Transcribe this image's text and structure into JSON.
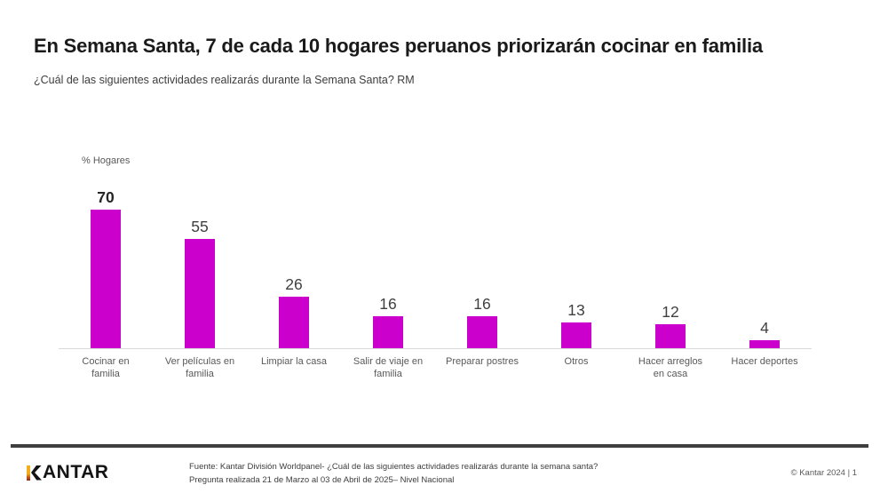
{
  "slide": {
    "title": "En Semana Santa, 7 de cada 10 hogares peruanos priorizarán cocinar en familia",
    "subtitle": "¿Cuál de las siguientes actividades realizarás durante la Semana Santa? RM"
  },
  "chart_data": {
    "type": "bar",
    "title": "",
    "ylabel": "% Hogares",
    "xlabel": "",
    "categories": [
      "Cocinar en familia",
      "Ver películas en familia",
      "Limpiar la casa",
      "Salir de viaje en familia",
      "Preparar postres",
      "Otros",
      "Hacer arreglos en casa",
      "Hacer deportes"
    ],
    "values": [
      70,
      55,
      26,
      16,
      16,
      13,
      12,
      4
    ],
    "ylim": [
      0,
      80
    ],
    "grid": false,
    "legend": "none",
    "bar_color": "#CC00CC",
    "value_label_color": "#404040",
    "emphasized_index": 0
  },
  "footer": {
    "logo_text": "KANTAR",
    "source_line1": "Fuente: Kantar División Worldpanel- ¿Cuál de las siguientes actividades realizarás durante la semana santa?",
    "source_line2": "Pregunta realizada 21 de Marzo al 03 de Abril de 2025– Nivel Nacional",
    "copyright": "© Kantar 2024 | 1"
  }
}
